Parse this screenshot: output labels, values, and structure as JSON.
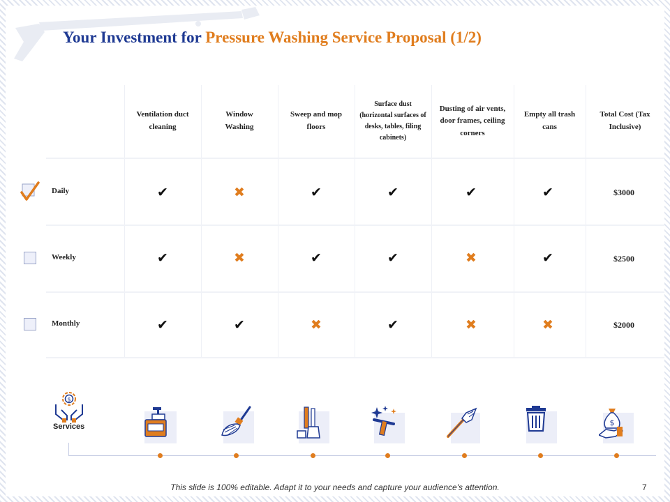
{
  "title": {
    "part1": "Your Investment for ",
    "part2": "Pressure Washing Service Proposal (1/2)"
  },
  "columns": [
    "Ventilation duct cleaning",
    "Window Washing",
    "Sweep and mop floors",
    "Surface dust (horizontal surfaces of desks, tables, filing cabinets)",
    "Dusting of air vents, door frames, ceiling corners",
    "Empty all trash cans",
    "Total Cost (Tax Inclusive)"
  ],
  "rows": [
    {
      "label": "Daily",
      "checked": true,
      "marks": [
        true,
        false,
        true,
        true,
        true,
        true
      ],
      "cost": "$3000"
    },
    {
      "label": "Weekly",
      "checked": false,
      "marks": [
        true,
        false,
        true,
        true,
        false,
        true
      ],
      "cost": "$2500"
    },
    {
      "label": "Monthly",
      "checked": false,
      "marks": [
        true,
        true,
        false,
        true,
        false,
        false
      ],
      "cost": "$2000"
    }
  ],
  "services_label": "Services",
  "icons": [
    "hands-money-gear-icon",
    "soap-dispenser-icon",
    "feather-duster-icon",
    "broom-dustpan-icon",
    "squeegee-sparkle-icon",
    "brush-icon",
    "trash-can-icon",
    "money-bag-hand-icon"
  ],
  "footer": "This slide is 100% editable. Adapt it to your needs and capture your audience's attention.",
  "page_number": "7",
  "colors": {
    "blue": "#1f3a93",
    "orange": "#e07d1e"
  }
}
